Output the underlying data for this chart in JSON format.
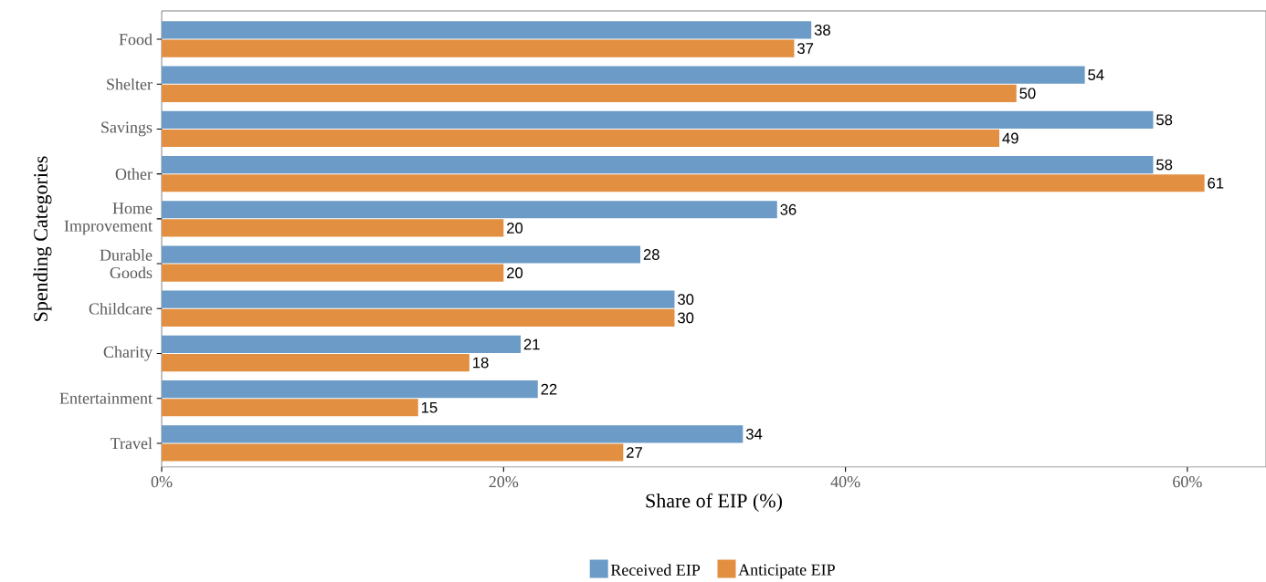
{
  "chart_data": {
    "type": "bar",
    "orientation": "horizontal",
    "xlabel": "Share of EIP (%)",
    "ylabel": "Spending Categories",
    "categories": [
      "Food",
      "Shelter",
      "Savings",
      "Other",
      "Home Improvement",
      "Durable Goods",
      "Childcare",
      "Charity",
      "Entertainment",
      "Travel"
    ],
    "series": [
      {
        "name": "Received EIP",
        "color": "#6b9bc6",
        "values": [
          38,
          54,
          58,
          58,
          36,
          28,
          30,
          21,
          22,
          34
        ]
      },
      {
        "name": "Anticipate EIP",
        "color": "#e28f41",
        "values": [
          37,
          50,
          49,
          61,
          20,
          20,
          30,
          18,
          15,
          27
        ]
      }
    ],
    "xlim": [
      0,
      64.6
    ],
    "xticks": [
      {
        "value": 0,
        "label": "0%"
      },
      {
        "value": 20,
        "label": "20%"
      },
      {
        "value": 40,
        "label": "40%"
      },
      {
        "value": 60,
        "label": "60%"
      }
    ],
    "data_labels": true,
    "grid": false,
    "legend": "bottom"
  }
}
